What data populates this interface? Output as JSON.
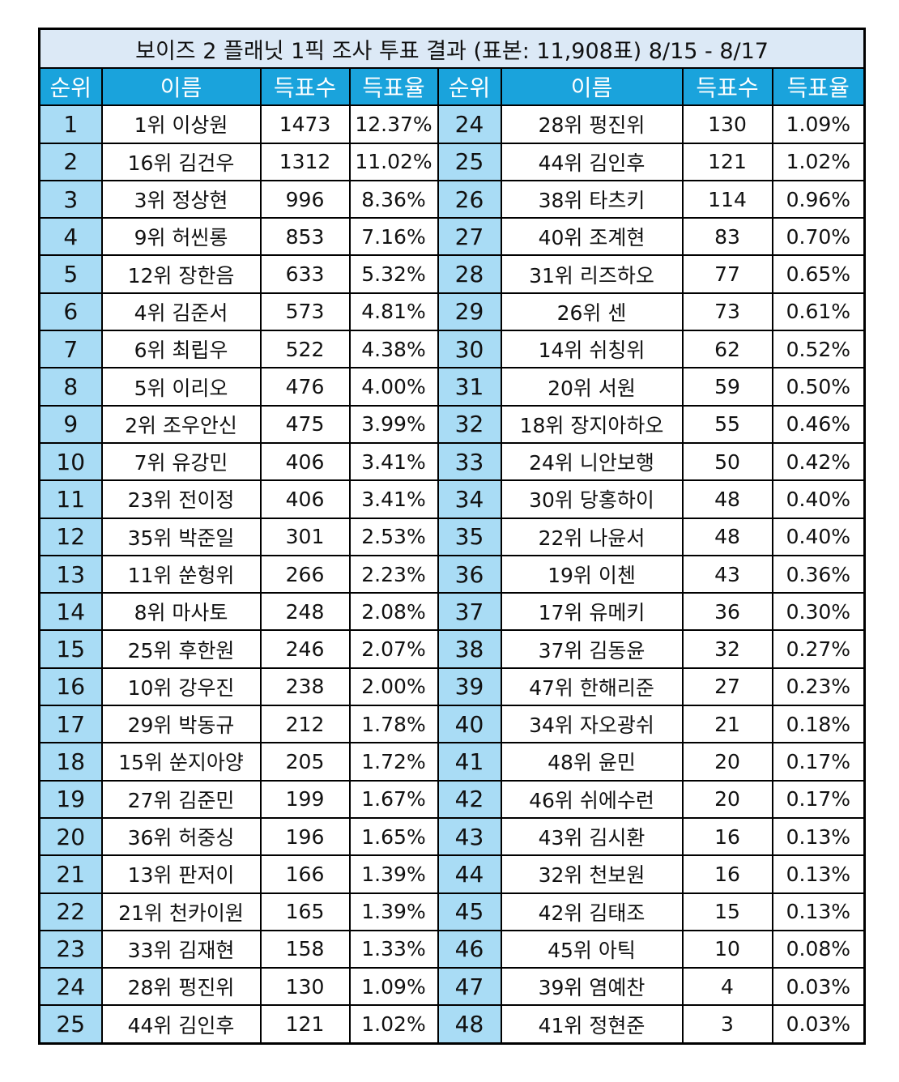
{
  "title": "보이즈 2 플래닛 1픽 조사 투표 결과 (표본: 11,908표) 8/15 - 8/17",
  "headers": [
    "순위",
    "이름",
    "득표수",
    "득표율",
    "순위",
    "이름",
    "득표수",
    "득표율"
  ],
  "rows": [
    {
      "left": {
        "rank": "1",
        "name": "1위 이상원",
        "votes": "1473",
        "pct": "12.37%"
      },
      "right": {
        "rank": "24",
        "name": "28위 펑진위",
        "votes": "130",
        "pct": "1.09%"
      }
    },
    {
      "left": {
        "rank": "2",
        "name": "16위 김건우",
        "votes": "1312",
        "pct": "11.02%"
      },
      "right": {
        "rank": "25",
        "name": "44위 김인후",
        "votes": "121",
        "pct": "1.02%"
      }
    },
    {
      "left": {
        "rank": "3",
        "name": "3위 정상현",
        "votes": "996",
        "pct": "8.36%"
      },
      "right": {
        "rank": "26",
        "name": "38위 타츠키",
        "votes": "114",
        "pct": "0.96%"
      }
    },
    {
      "left": {
        "rank": "4",
        "name": "9위 허씬롱",
        "votes": "853",
        "pct": "7.16%"
      },
      "right": {
        "rank": "27",
        "name": "40위 조계현",
        "votes": "83",
        "pct": "0.70%"
      }
    },
    {
      "left": {
        "rank": "5",
        "name": "12위 장한음",
        "votes": "633",
        "pct": "5.32%"
      },
      "right": {
        "rank": "28",
        "name": "31위 리즈하오",
        "votes": "77",
        "pct": "0.65%"
      }
    },
    {
      "left": {
        "rank": "6",
        "name": "4위 김준서",
        "votes": "573",
        "pct": "4.81%"
      },
      "right": {
        "rank": "29",
        "name": "26위 센",
        "votes": "73",
        "pct": "0.61%"
      }
    },
    {
      "left": {
        "rank": "7",
        "name": "6위 최립우",
        "votes": "522",
        "pct": "4.38%"
      },
      "right": {
        "rank": "30",
        "name": "14위 쉬칭위",
        "votes": "62",
        "pct": "0.52%"
      }
    },
    {
      "left": {
        "rank": "8",
        "name": "5위 이리오",
        "votes": "476",
        "pct": "4.00%"
      },
      "right": {
        "rank": "31",
        "name": "20위 서원",
        "votes": "59",
        "pct": "0.50%"
      }
    },
    {
      "left": {
        "rank": "9",
        "name": "2위 조우안신",
        "votes": "475",
        "pct": "3.99%"
      },
      "right": {
        "rank": "32",
        "name": "18위 장지아하오",
        "votes": "55",
        "pct": "0.46%"
      }
    },
    {
      "left": {
        "rank": "10",
        "name": "7위 유강민",
        "votes": "406",
        "pct": "3.41%"
      },
      "right": {
        "rank": "33",
        "name": "24위 니안보행",
        "votes": "50",
        "pct": "0.42%"
      }
    },
    {
      "left": {
        "rank": "11",
        "name": "23위 전이정",
        "votes": "406",
        "pct": "3.41%"
      },
      "right": {
        "rank": "34",
        "name": "30위 당홍하이",
        "votes": "48",
        "pct": "0.40%"
      }
    },
    {
      "left": {
        "rank": "12",
        "name": "35위 박준일",
        "votes": "301",
        "pct": "2.53%"
      },
      "right": {
        "rank": "35",
        "name": "22위 나윤서",
        "votes": "48",
        "pct": "0.40%"
      }
    },
    {
      "left": {
        "rank": "13",
        "name": "11위 쑨헝위",
        "votes": "266",
        "pct": "2.23%"
      },
      "right": {
        "rank": "36",
        "name": "19위 이첸",
        "votes": "43",
        "pct": "0.36%"
      }
    },
    {
      "left": {
        "rank": "14",
        "name": "8위 마사토",
        "votes": "248",
        "pct": "2.08%"
      },
      "right": {
        "rank": "37",
        "name": "17위 유메키",
        "votes": "36",
        "pct": "0.30%"
      }
    },
    {
      "left": {
        "rank": "15",
        "name": "25위 후한원",
        "votes": "246",
        "pct": "2.07%"
      },
      "right": {
        "rank": "38",
        "name": "37위 김동윤",
        "votes": "32",
        "pct": "0.27%"
      }
    },
    {
      "left": {
        "rank": "16",
        "name": "10위 강우진",
        "votes": "238",
        "pct": "2.00%"
      },
      "right": {
        "rank": "39",
        "name": "47위 한해리준",
        "votes": "27",
        "pct": "0.23%"
      }
    },
    {
      "left": {
        "rank": "17",
        "name": "29위 박동규",
        "votes": "212",
        "pct": "1.78%"
      },
      "right": {
        "rank": "40",
        "name": "34위 자오광쉬",
        "votes": "21",
        "pct": "0.18%"
      }
    },
    {
      "left": {
        "rank": "18",
        "name": "15위 쑨지아양",
        "votes": "205",
        "pct": "1.72%"
      },
      "right": {
        "rank": "41",
        "name": "48위 윤민",
        "votes": "20",
        "pct": "0.17%"
      }
    },
    {
      "left": {
        "rank": "19",
        "name": "27위 김준민",
        "votes": "199",
        "pct": "1.67%"
      },
      "right": {
        "rank": "42",
        "name": "46위 쉬에수런",
        "votes": "20",
        "pct": "0.17%"
      }
    },
    {
      "left": {
        "rank": "20",
        "name": "36위 허중싱",
        "votes": "196",
        "pct": "1.65%"
      },
      "right": {
        "rank": "43",
        "name": "43위 김시환",
        "votes": "16",
        "pct": "0.13%"
      }
    },
    {
      "left": {
        "rank": "21",
        "name": "13위 판저이",
        "votes": "166",
        "pct": "1.39%"
      },
      "right": {
        "rank": "44",
        "name": "32위 천보원",
        "votes": "16",
        "pct": "0.13%"
      }
    },
    {
      "left": {
        "rank": "22",
        "name": "21위 천카이원",
        "votes": "165",
        "pct": "1.39%"
      },
      "right": {
        "rank": "45",
        "name": "42위 김태조",
        "votes": "15",
        "pct": "0.13%"
      }
    },
    {
      "left": {
        "rank": "23",
        "name": "33위 김재현",
        "votes": "158",
        "pct": "1.33%"
      },
      "right": {
        "rank": "46",
        "name": "45위 아틱",
        "votes": "10",
        "pct": "0.08%"
      }
    },
    {
      "left": {
        "rank": "24",
        "name": "28위 펑진위",
        "votes": "130",
        "pct": "1.09%"
      },
      "right": {
        "rank": "47",
        "name": "39위 염예찬",
        "votes": "4",
        "pct": "0.03%"
      }
    },
    {
      "left": {
        "rank": "25",
        "name": "44위 김인후",
        "votes": "121",
        "pct": "1.02%"
      },
      "right": {
        "rank": "48",
        "name": "41위 정현준",
        "votes": "3",
        "pct": "0.03%"
      }
    }
  ],
  "colors": {
    "header_bg": "#1aa3dc",
    "rank_bg": "#a9dcf5",
    "title_bg": "#dce9f6"
  }
}
